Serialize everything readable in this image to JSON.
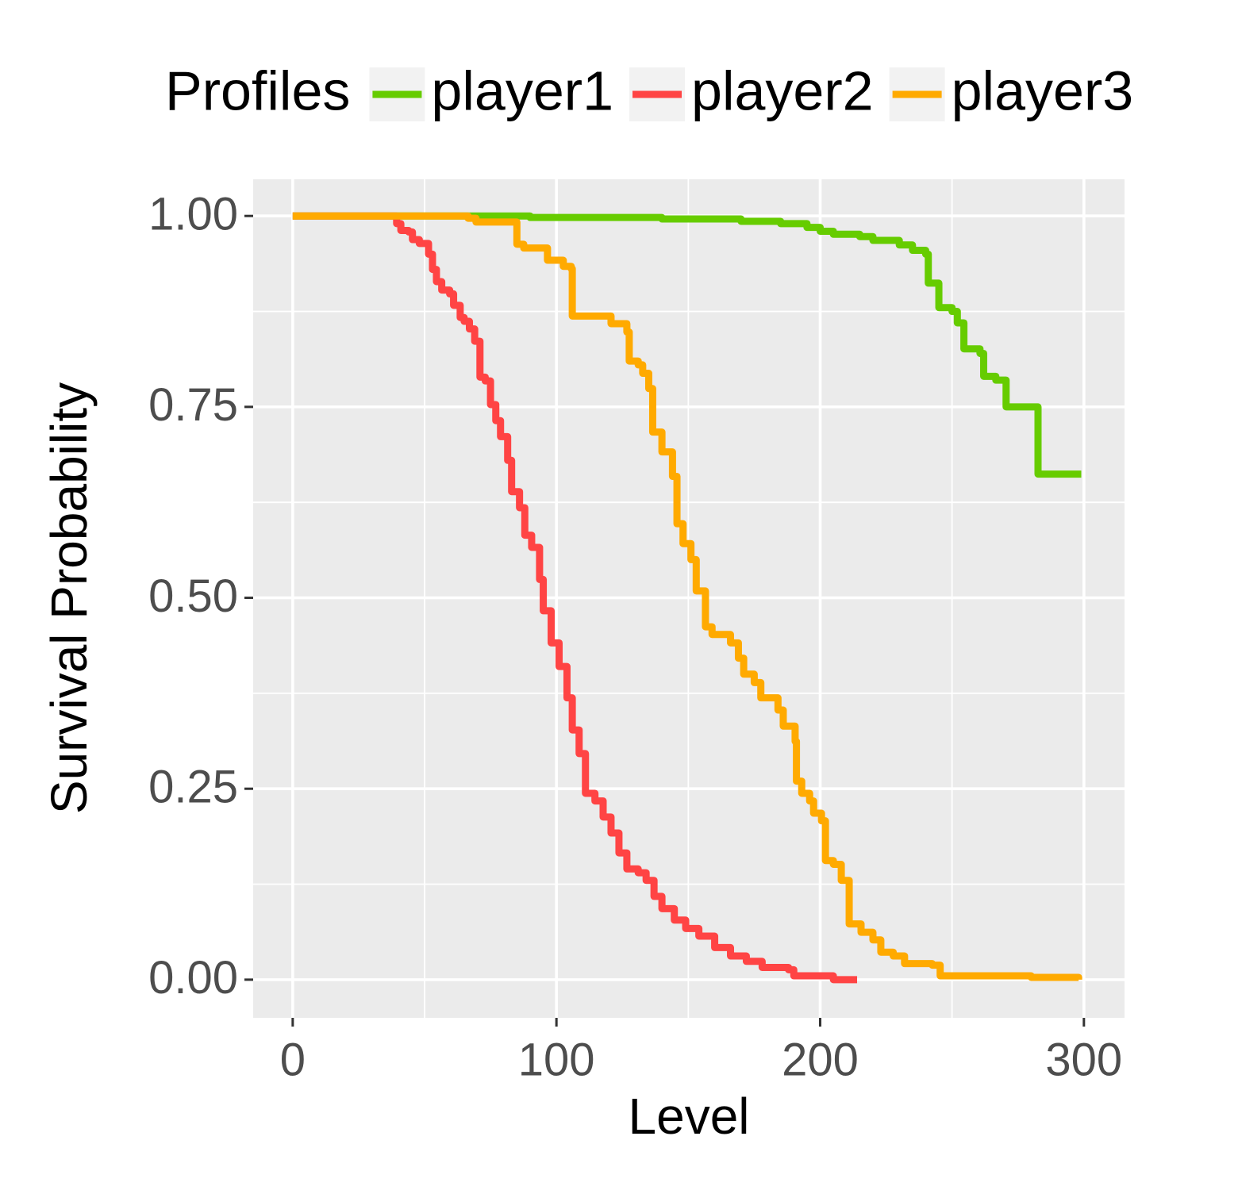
{
  "chart_data": {
    "type": "line",
    "step": true,
    "x_label": "Level",
    "y_label": "Survival Probability",
    "legend_title": "Profiles",
    "legend_position": "top",
    "xlim": [
      -15,
      315.4
    ],
    "ylim": [
      -0.05,
      1.048
    ],
    "xticks": [
      0,
      100,
      200,
      300
    ],
    "xminor": [
      50,
      150,
      250
    ],
    "yticks": [
      {
        "value": 0,
        "label": "0.00"
      },
      {
        "value": 0.25,
        "label": "0.25"
      },
      {
        "value": 0.5,
        "label": "0.50"
      },
      {
        "value": 0.75,
        "label": "0.75"
      },
      {
        "value": 1,
        "label": "1.00"
      }
    ],
    "yminor": [
      0.125,
      0.375,
      0.625,
      0.875
    ],
    "grid": true,
    "series": [
      {
        "name": "player1",
        "color": "#66cc00",
        "x": [
          0,
          88,
          90,
          140,
          170,
          185,
          195,
          200,
          205,
          215,
          220,
          230,
          235,
          240,
          241,
          245,
          250,
          252,
          254.5,
          260.6,
          262,
          266.6,
          270.5,
          279.5,
          282.6,
          299
        ],
        "values": [
          1,
          1,
          0.998,
          0.996,
          0.993,
          0.99,
          0.985,
          0.98,
          0.976,
          0.973,
          0.968,
          0.962,
          0.955,
          0.95,
          0.912,
          0.88,
          0.875,
          0.86,
          0.826,
          0.82,
          0.79,
          0.785,
          0.75,
          0.75,
          0.662,
          0.662
        ]
      },
      {
        "name": "player2",
        "color": "#ff4444",
        "x": [
          0,
          39.4,
          41,
          44,
          45.4,
          48,
          51.5,
          53,
          54.5,
          56.5,
          59.5,
          61,
          63.5,
          65,
          67,
          69,
          71,
          73,
          75,
          77,
          78.8,
          81.5,
          83,
          86,
          88,
          90.6,
          93.6,
          95,
          98,
          101,
          104,
          106,
          108.6,
          111,
          114.6,
          117.7,
          120.7,
          123.7,
          126.7,
          131,
          134,
          137,
          140,
          144.7,
          149,
          154,
          160,
          166,
          172,
          178,
          188,
          190,
          205,
          214
        ],
        "values": [
          1,
          0.99,
          0.981,
          0.979,
          0.969,
          0.964,
          0.95,
          0.93,
          0.914,
          0.903,
          0.898,
          0.883,
          0.867,
          0.862,
          0.852,
          0.836,
          0.789,
          0.784,
          0.753,
          0.732,
          0.711,
          0.68,
          0.639,
          0.618,
          0.582,
          0.566,
          0.524,
          0.483,
          0.441,
          0.41,
          0.369,
          0.327,
          0.296,
          0.244,
          0.234,
          0.213,
          0.192,
          0.166,
          0.145,
          0.14,
          0.13,
          0.109,
          0.093,
          0.078,
          0.067,
          0.057,
          0.042,
          0.031,
          0.024,
          0.016,
          0.013,
          0.005,
          0,
          0
        ]
      },
      {
        "name": "player3",
        "color": "#ffaa00",
        "x": [
          0,
          66.5,
          69.5,
          84.5,
          85,
          87.6,
          95,
          96.6,
          102.6,
          105.6,
          106,
          117.6,
          120.7,
          126.7,
          127.6,
          131,
          132.7,
          135,
          136.5,
          140,
          144,
          145.7,
          148,
          151,
          153,
          156.5,
          159,
          166,
          169,
          171,
          175,
          177.5,
          184,
          186,
          190.5,
          191,
          193,
          196,
          197.5,
          200.5,
          202,
          205,
          208,
          211,
          215.5,
          220,
          223,
          227.7,
          232,
          242.5,
          245.5,
          280,
          298
        ],
        "values": [
          1,
          0.997,
          0.992,
          0.992,
          0.963,
          0.958,
          0.958,
          0.942,
          0.934,
          0.931,
          0.869,
          0.869,
          0.859,
          0.848,
          0.81,
          0.805,
          0.794,
          0.774,
          0.717,
          0.691,
          0.659,
          0.597,
          0.571,
          0.55,
          0.509,
          0.462,
          0.452,
          0.441,
          0.421,
          0.4,
          0.389,
          0.369,
          0.353,
          0.332,
          0.312,
          0.26,
          0.244,
          0.234,
          0.218,
          0.208,
          0.156,
          0.151,
          0.13,
          0.073,
          0.062,
          0.052,
          0.036,
          0.031,
          0.021,
          0.019,
          0.005,
          0.003,
          0
        ]
      }
    ]
  }
}
